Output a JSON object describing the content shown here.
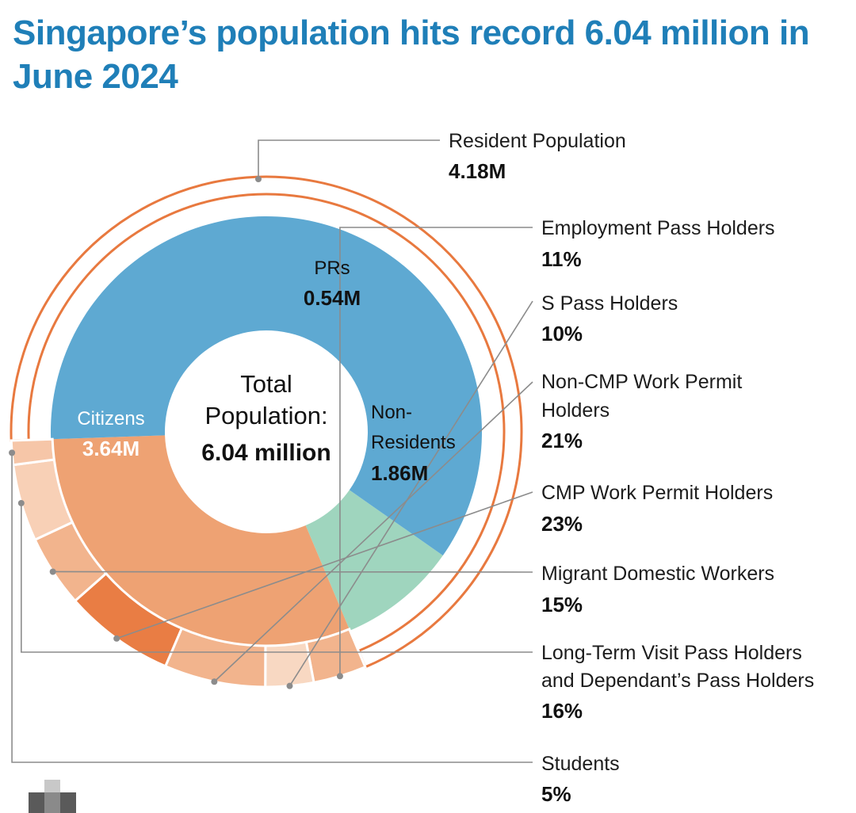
{
  "title": "Singapore’s population hits record 6.04 million in June 2024",
  "center": {
    "line1": "Total",
    "line2": "Population:",
    "value": "6.04 million"
  },
  "resident_label": {
    "name": "Resident Population",
    "value": "4.18M"
  },
  "chart_data": {
    "type": "pie",
    "title": "Singapore’s population hits record 6.04 million in June 2024",
    "total": 6.04,
    "inner_ring": [
      {
        "name": "Citizens",
        "display": "3.64M",
        "value": 3.64,
        "color": "#5ea9d2"
      },
      {
        "name": "PRs",
        "display": "0.54M",
        "value": 0.54,
        "color": "#9fd5be"
      },
      {
        "name": "Non-Residents",
        "display": "1.86M",
        "value": 1.86,
        "color": "#eea273"
      }
    ],
    "outer_ring": [
      {
        "name": "Resident Population",
        "display": "4.18M",
        "value": 4.18,
        "color": "#e8793f"
      }
    ],
    "non_resident_breakdown": [
      {
        "name": "Employment Pass Holders",
        "percent": 11,
        "display": "11%",
        "color": "#f2b48d"
      },
      {
        "name": "S Pass Holders",
        "percent": 10,
        "display": "10%",
        "color": "#f8d8c2"
      },
      {
        "name": "Non-CMP Work Permit Holders",
        "percent": 21,
        "display": "21%",
        "color": "#f2b48d"
      },
      {
        "name": "CMP Work Permit Holders",
        "percent": 23,
        "display": "23%",
        "color": "#e97d44"
      },
      {
        "name": "Migrant Domestic Workers",
        "percent": 15,
        "display": "15%",
        "color": "#f2b48d"
      },
      {
        "name": "Long-Term Visit Pass Holders and Dependant’s Pass Holders",
        "percent": 16,
        "display": "16%",
        "color": "#f8d0b6"
      },
      {
        "name": "Students",
        "percent": 5,
        "display": "5%",
        "color": "#f6c6a8"
      }
    ]
  },
  "colors": {
    "title": "#1f7fb8",
    "outline": "#e8793f",
    "leader": "#8c8c8c"
  }
}
